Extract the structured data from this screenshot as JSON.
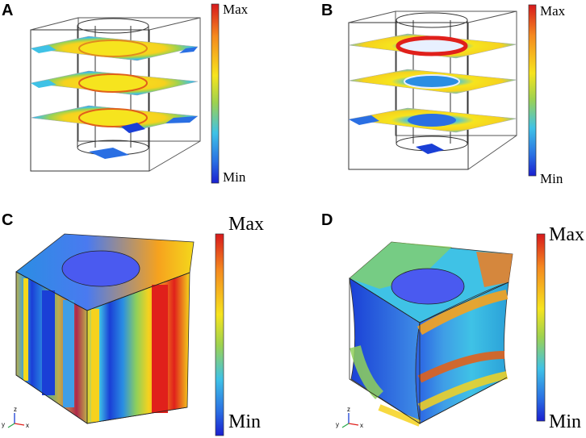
{
  "panels": [
    {
      "letter": "A",
      "scale_max": "Max",
      "scale_min": "Min"
    },
    {
      "letter": "B",
      "scale_max": "Max",
      "scale_min": "Min"
    },
    {
      "letter": "C",
      "scale_max": "Max",
      "scale_min": "Min"
    },
    {
      "letter": "D",
      "scale_max": "Max",
      "scale_min": "Min"
    }
  ],
  "axes_triad": {
    "x": "x",
    "y": "y",
    "z": "z"
  },
  "colors": {
    "red": "#e0201b",
    "orange": "#f07c1f",
    "yellow": "#f4e51c",
    "green": "#8fd05a",
    "cyan": "#3fc2e6",
    "blue": "#1a3fd6",
    "violet": "#4a5af0"
  },
  "colormap": [
    "#e0201b",
    "#f58a1f",
    "#f6e41e",
    "#9ed24f",
    "#3fc2e6",
    "#2a6fe3",
    "#1a1fd0"
  ]
}
